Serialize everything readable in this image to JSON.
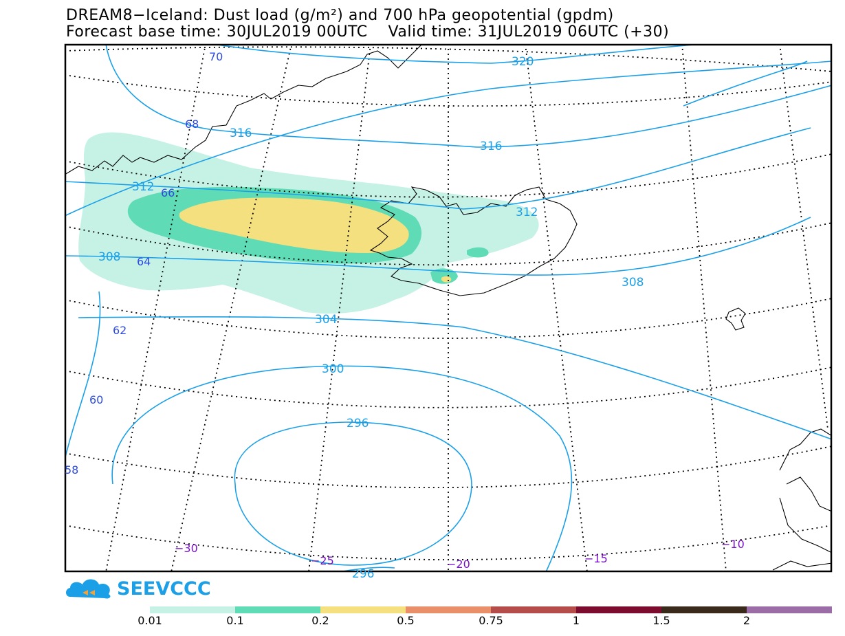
{
  "title": {
    "line1": "DREAM8−Iceland: Dust load (g/m²) and 700 hPa geopotential (gpdm)",
    "line2": "Forecast base time: 30JUL2019 00UTC    Valid time: 31JUL2019 06UTC (+30)"
  },
  "map": {
    "contours": [
      {
        "label": "320"
      },
      {
        "label": "316"
      },
      {
        "label": "316"
      },
      {
        "label": "312"
      },
      {
        "label": "312"
      },
      {
        "label": "308"
      },
      {
        "label": "308"
      },
      {
        "label": "304"
      },
      {
        "label": "300"
      },
      {
        "label": "296"
      },
      {
        "label": "296"
      }
    ],
    "latitudes": [
      "70",
      "68",
      "66",
      "64",
      "62",
      "60",
      "58"
    ],
    "longitudes": [
      "−30",
      "−25",
      "−20",
      "−15",
      "−10"
    ],
    "colors": {
      "contour": "#1ba0e8",
      "lat_label": "#2d4be0",
      "lon_label": "#7a12c8",
      "frame": "#000000"
    }
  },
  "logo": {
    "text": "SEEVCCC",
    "icon": "cloud-icon",
    "color": "#1ba0e8"
  },
  "legend": {
    "bins": [
      {
        "color": "#c6f2e6"
      },
      {
        "color": "#5fdcb5"
      },
      {
        "color": "#f5e07f"
      },
      {
        "color": "#e98f6a"
      },
      {
        "color": "#b54e4a"
      },
      {
        "color": "#7d0d2f"
      },
      {
        "color": "#3a2a1c"
      },
      {
        "color": "#9a6da6"
      }
    ],
    "labels": [
      "0.01",
      "0.1",
      "0.2",
      "0.5",
      "0.75",
      "1",
      "1.5",
      "2"
    ]
  }
}
